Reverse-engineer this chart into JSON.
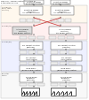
{
  "bg": "#ffffff",
  "sec1_bg": "#fff8ee",
  "sec2_bg": "#fff0f0",
  "sec3_bg": "#eef0ff",
  "sec4_bg": "#f8f8f8",
  "sec_border": "#bbbbbb",
  "box_bg": "#ffffff",
  "box_ec": "#555555",
  "gray_box_bg": "#dddddd",
  "small_box_bg": "#eeeeee",
  "small_box_ec": "#999999",
  "arrow_c": "#777777",
  "red_c": "#cc3333",
  "text_c": "#111111",
  "label_c": "#444444",
  "title_c": "#222222",
  "bottom_box_ec": "#222222",
  "thyristor_c": "#111111"
}
